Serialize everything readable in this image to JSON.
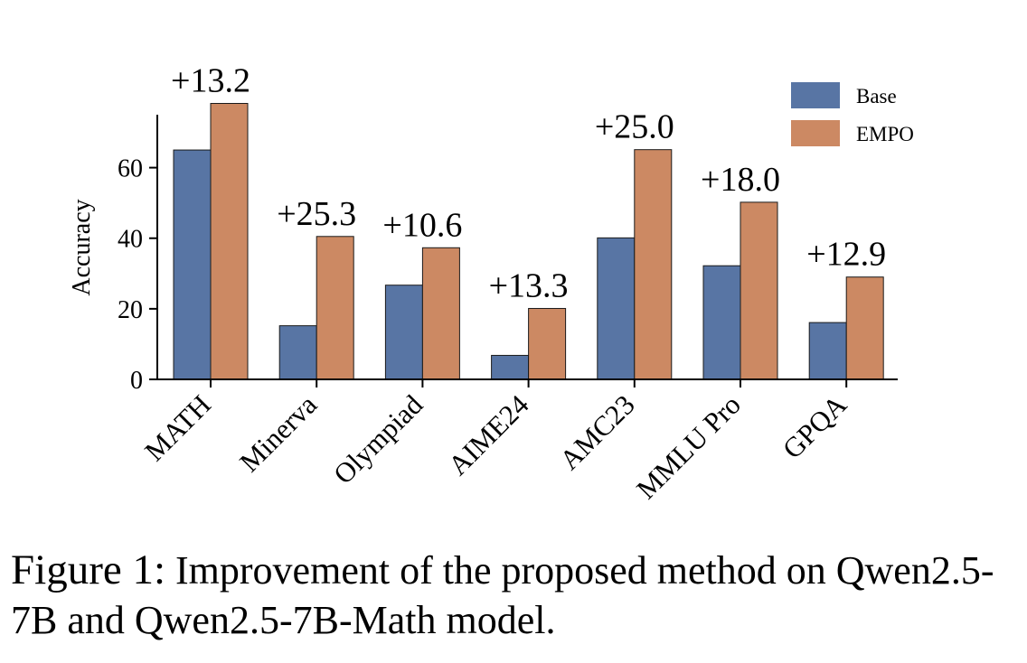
{
  "chart_data": {
    "type": "bar",
    "categories": [
      "MATH",
      "Minerva",
      "Olympiad",
      "AIME24",
      "AMC23",
      "MMLU Pro",
      "GPQA"
    ],
    "series": [
      {
        "name": "Base",
        "color": "#5875a4",
        "values": [
          65.0,
          15.2,
          26.7,
          6.8,
          40.1,
          32.2,
          16.1
        ]
      },
      {
        "name": "EMPO",
        "color": "#cc8963",
        "values": [
          78.2,
          40.5,
          37.3,
          20.1,
          65.1,
          50.2,
          29.0
        ]
      }
    ],
    "annotations": [
      "+13.2",
      "+25.3",
      "+10.6",
      "+13.3",
      "+25.0",
      "+18.0",
      "+12.9"
    ],
    "ylabel": "Accuracy",
    "xlabel": "",
    "title": "",
    "ylim": [
      0,
      75
    ],
    "yticks": [
      0,
      20,
      40,
      60
    ],
    "grid": false,
    "legend_position": "top-right"
  },
  "caption": {
    "label": "Figure 1:",
    "text": "Improvement of the proposed method on Qwen2.5-7B and Qwen2.5-7B-Math model."
  }
}
